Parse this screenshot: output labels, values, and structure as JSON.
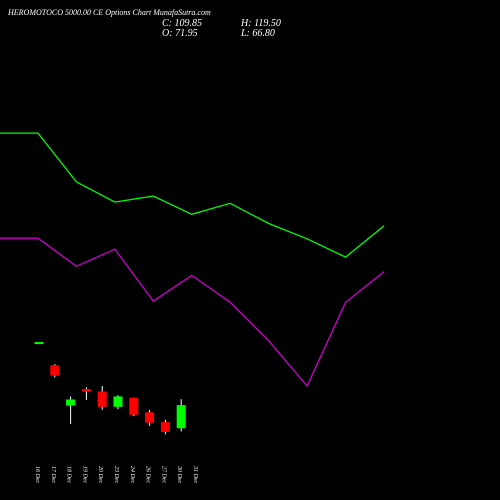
{
  "header": {
    "title": "HEROMOTOCO 5000.00  CE Options  Chart MunafaSutra.com",
    "close_label": "C:",
    "close_value": "109.85",
    "open_label": "O:",
    "open_value": "71.95",
    "high_label": "H:",
    "high_value": "119.50",
    "low_label": "L:",
    "low_value": "66.80"
  },
  "colors": {
    "background": "#000000",
    "up": "#00ff00",
    "down": "#ff0000",
    "line_upper": "#00ff00",
    "line_lower": "#cc00cc",
    "text": "#ffffff",
    "wick": "#ffffff"
  },
  "chart_data": {
    "type": "candlestick",
    "title": "HEROMOTOCO 5000.00  CE Options  Chart MunafaSutra.com",
    "categories": [
      "16 Dec",
      "17 Dec",
      "18 Dec",
      "19 Dec",
      "20 Dec",
      "23 Dec",
      "24 Dec",
      "26 Dec",
      "27 Dec",
      "30 Dec",
      "31 Dec"
    ],
    "ohlc": [
      {
        "date": "16 Dec",
        "open": 213,
        "high": 213,
        "low": 213,
        "close": 213
      },
      {
        "date": "17 Dec",
        "open": 175,
        "high": 177,
        "low": 155,
        "close": 158
      },
      {
        "date": "18 Dec",
        "open": 109,
        "high": 124,
        "low": 79,
        "close": 119
      },
      {
        "date": "19 Dec",
        "open": 136,
        "high": 139,
        "low": 118,
        "close": 132
      },
      {
        "date": "20 Dec",
        "open": 132,
        "high": 141,
        "low": 102,
        "close": 107
      },
      {
        "date": "23 Dec",
        "open": 107,
        "high": 126,
        "low": 103,
        "close": 124
      },
      {
        "date": "24 Dec",
        "open": 122,
        "high": 122,
        "low": 92,
        "close": 94
      },
      {
        "date": "26 Dec",
        "open": 98,
        "high": 102,
        "low": 76,
        "close": 81
      },
      {
        "date": "27 Dec",
        "open": 82,
        "high": 86,
        "low": 62,
        "close": 66
      },
      {
        "date": "30 Dec",
        "open": 71.95,
        "high": 119.5,
        "low": 66.8,
        "close": 109.85
      }
    ],
    "series": [
      {
        "values": [
          555,
          555,
          475,
          442,
          452,
          422,
          440,
          407,
          382,
          352,
          403
        ]
      },
      {
        "values": [
          383,
          383,
          337,
          365,
          280,
          322,
          278,
          215,
          141,
          278,
          328
        ]
      }
    ],
    "ylim": [
      20,
      740
    ]
  }
}
